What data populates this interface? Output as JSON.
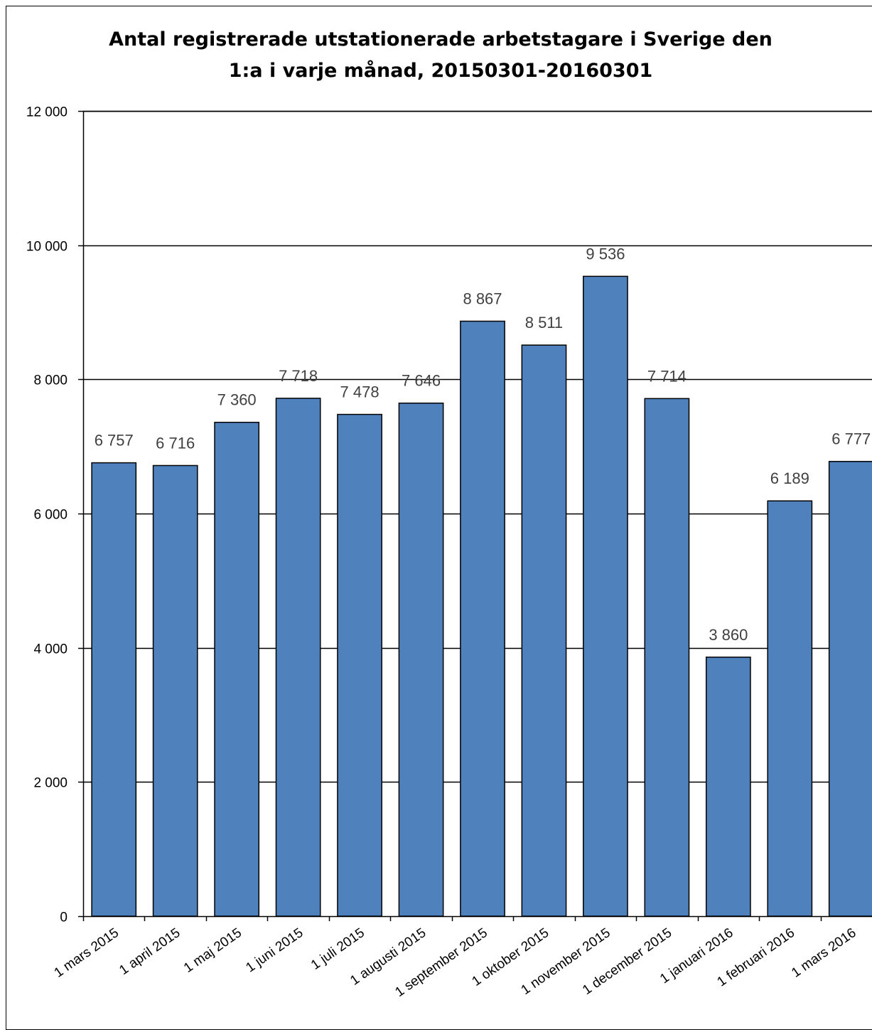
{
  "chart_data": {
    "type": "bar",
    "title": "Antal registrerade utstationerade arbetstagare i Sverige den 1:a i varje månad, 20150301-20160301",
    "title_lines": [
      "Antal registrerade utstationerade arbetstagare i Sverige den",
      "1:a i varje månad, 20150301-20160301"
    ],
    "categories": [
      "1 mars 2015",
      "1 april 2015",
      "1 maj 2015",
      "1 juni 2015",
      "1 juli 2015",
      "1 augusti 2015",
      "1 september 2015",
      "1 oktober 2015",
      "1 november 2015",
      "1 december 2015",
      "1 januari 2016",
      "1 februari 2016",
      "1 mars 2016"
    ],
    "values": [
      6757,
      6716,
      7360,
      7718,
      7478,
      7646,
      8867,
      8511,
      9536,
      7714,
      3860,
      6189,
      6777
    ],
    "value_labels": [
      "6 757",
      "6 716",
      "7 360",
      "7 718",
      "7 478",
      "7 646",
      "8 867",
      "8 511",
      "9 536",
      "7 714",
      "3 860",
      "6 189",
      "6 777"
    ],
    "ylim": [
      0,
      12000
    ],
    "yticks": [
      0,
      2000,
      4000,
      6000,
      8000,
      10000,
      12000
    ],
    "ytick_labels": [
      "0",
      "2 000",
      "4 000",
      "6 000",
      "8 000",
      "10 000",
      "12 000"
    ],
    "xlabel": "",
    "ylabel": "",
    "grid": true,
    "legend": "none",
    "colors": {
      "bar": "#4F81BD",
      "bar_edge": "#000000",
      "data_label": "#404040",
      "grid": "#000000"
    }
  }
}
